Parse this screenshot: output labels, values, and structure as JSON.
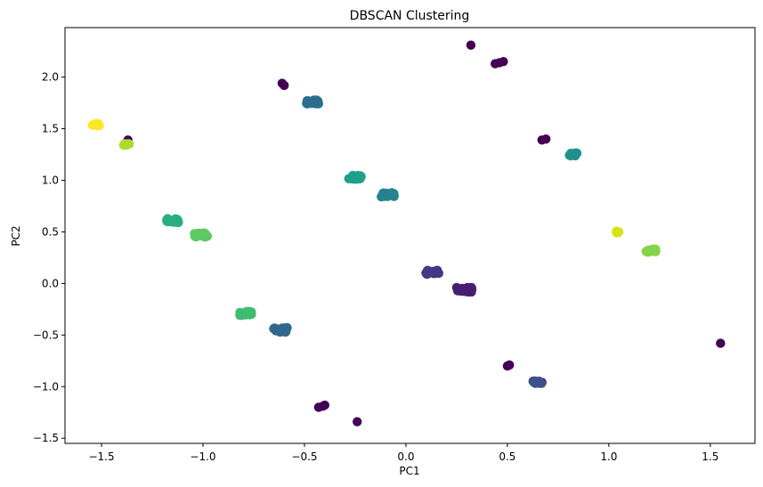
{
  "chart_data": {
    "type": "scatter",
    "title": "DBSCAN Clustering",
    "xlabel": "PC1",
    "ylabel": "PC2",
    "xlim": [
      -1.68,
      1.72
    ],
    "ylim": [
      -1.55,
      2.48
    ],
    "xticks": [
      {
        "value": -1.5,
        "label": "−1.5"
      },
      {
        "value": -1.0,
        "label": "−1.0"
      },
      {
        "value": -0.5,
        "label": "−0.5"
      },
      {
        "value": 0.0,
        "label": "0.0"
      },
      {
        "value": 0.5,
        "label": "0.5"
      },
      {
        "value": 1.0,
        "label": "1.0"
      },
      {
        "value": 1.5,
        "label": "1.5"
      }
    ],
    "yticks": [
      {
        "value": -1.5,
        "label": "−1.5"
      },
      {
        "value": -1.0,
        "label": "−1.0"
      },
      {
        "value": -0.5,
        "label": "−0.5"
      },
      {
        "value": 0.0,
        "label": "0.0"
      },
      {
        "value": 0.5,
        "label": "0.5"
      },
      {
        "value": 1.0,
        "label": "1.0"
      },
      {
        "value": 1.5,
        "label": "1.5"
      },
      {
        "value": 2.0,
        "label": "2.0"
      }
    ],
    "grid": false,
    "legend": "none",
    "groups": [
      {
        "color": "#440154",
        "spread": 0.0,
        "centers": [
          [
            0.32,
            2.31
          ],
          [
            0.44,
            2.13
          ],
          [
            0.46,
            2.14
          ],
          [
            0.48,
            2.15
          ],
          [
            -0.61,
            1.94
          ],
          [
            -0.6,
            1.92
          ],
          [
            -1.37,
            1.39
          ],
          [
            0.67,
            1.39
          ],
          [
            0.69,
            1.4
          ],
          [
            0.5,
            -0.8
          ],
          [
            0.51,
            -0.79
          ],
          [
            0.67,
            -0.96
          ],
          [
            -0.43,
            -1.2
          ],
          [
            -0.41,
            -1.19
          ],
          [
            -0.4,
            -1.18
          ],
          [
            -0.24,
            -1.34
          ],
          [
            1.55,
            -0.58
          ]
        ]
      },
      {
        "color": "#481f70",
        "spread": 0.025,
        "count": 30,
        "centers": [
          [
            0.29,
            -0.06
          ]
        ]
      },
      {
        "color": "#443983",
        "spread": 0.02,
        "count": 24,
        "centers": [
          [
            0.13,
            0.11
          ]
        ]
      },
      {
        "color": "#3b528b",
        "spread": 0.015,
        "count": 12,
        "centers": [
          [
            0.65,
            -0.96
          ]
        ]
      },
      {
        "color": "#31688e",
        "spread": 0.022,
        "count": 24,
        "centers": [
          [
            -0.62,
            -0.45
          ]
        ]
      },
      {
        "color": "#2b6f8e",
        "spread": 0.02,
        "count": 22,
        "centers": [
          [
            -0.46,
            1.76
          ]
        ]
      },
      {
        "color": "#26828e",
        "spread": 0.02,
        "count": 22,
        "centers": [
          [
            -0.09,
            0.86
          ]
        ]
      },
      {
        "color": "#21918c",
        "spread": 0.015,
        "count": 16,
        "centers": [
          [
            0.82,
            1.25
          ]
        ]
      },
      {
        "color": "#1fa088",
        "spread": 0.02,
        "count": 20,
        "centers": [
          [
            -0.25,
            1.03
          ]
        ]
      },
      {
        "color": "#28ae80",
        "spread": 0.02,
        "count": 20,
        "centers": [
          [
            -1.15,
            0.61
          ]
        ]
      },
      {
        "color": "#3fbc73",
        "spread": 0.02,
        "count": 20,
        "centers": [
          [
            -0.79,
            -0.29
          ]
        ]
      },
      {
        "color": "#5ec962",
        "spread": 0.02,
        "count": 22,
        "centers": [
          [
            -1.01,
            0.47
          ]
        ]
      },
      {
        "color": "#84d44b",
        "spread": 0.018,
        "count": 16,
        "centers": [
          [
            1.21,
            0.32
          ]
        ]
      },
      {
        "color": "#addc30",
        "spread": 0.012,
        "count": 10,
        "centers": [
          [
            -1.38,
            1.35
          ]
        ]
      },
      {
        "color": "#d8e219",
        "spread": 0.01,
        "count": 8,
        "centers": [
          [
            1.05,
            0.5
          ]
        ]
      },
      {
        "color": "#fde725",
        "spread": 0.012,
        "count": 10,
        "centers": [
          [
            -1.53,
            1.54
          ]
        ]
      }
    ]
  }
}
